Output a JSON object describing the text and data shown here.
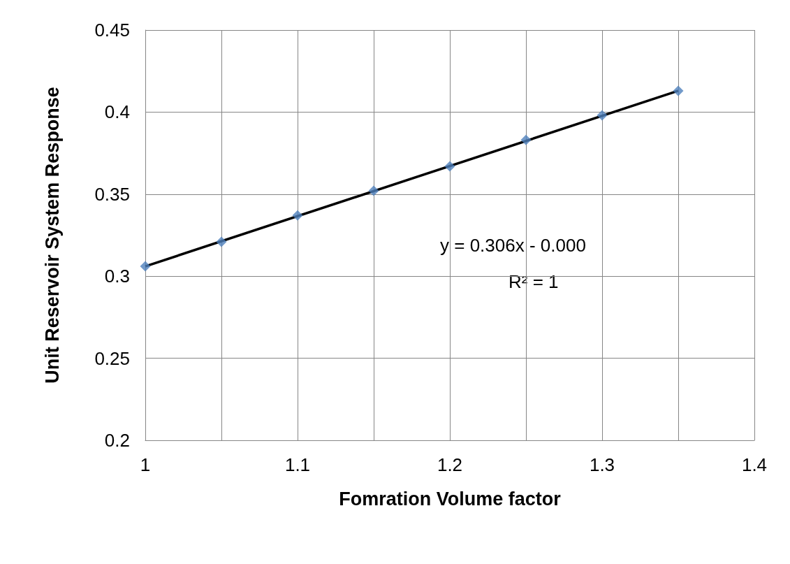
{
  "chart_data": {
    "type": "scatter",
    "xlabel": "Fomration Volume factor",
    "ylabel": "Unit Reservoir System Response",
    "xlim": [
      1,
      1.4
    ],
    "xticks": [
      1,
      {
        "value": 1.05,
        "label": null
      },
      1.1,
      {
        "value": 1.15,
        "label": null
      },
      1.2,
      {
        "value": 1.25,
        "label": null
      },
      1.3,
      {
        "value": 1.35,
        "label": null
      },
      1.4
    ],
    "ylim": [
      0.2,
      0.45
    ],
    "yticks": [
      0.2,
      0.25,
      0.3,
      0.35,
      0.4,
      0.45
    ],
    "grid": true,
    "series": [
      {
        "marker": "diamond",
        "color": "#4f81bd",
        "x": [
          1,
          1.05,
          1.1,
          1.15,
          1.2,
          1.25,
          1.3,
          1.35
        ],
        "values": [
          0.306,
          0.321,
          0.337,
          0.352,
          0.367,
          0.383,
          0.398,
          0.413
        ]
      },
      {
        "type": "line",
        "marker": "none",
        "line_style": "solid",
        "color": "#000000",
        "x": [
          1,
          1.35
        ],
        "values": [
          0.306,
          0.413
        ]
      }
    ],
    "annotations": [
      "y = 0.306x - 0.000",
      "R² = 1"
    ]
  }
}
